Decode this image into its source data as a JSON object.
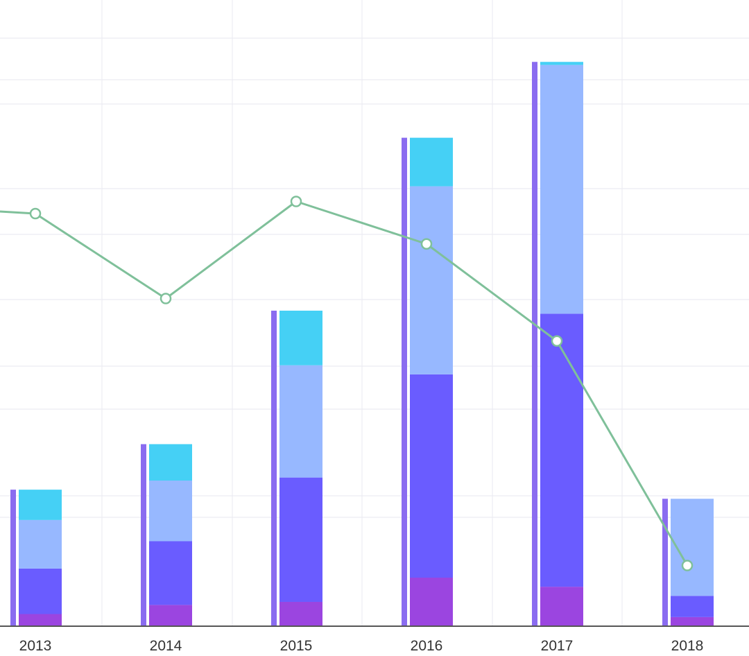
{
  "chart_data": {
    "type": "bar",
    "stacked": true,
    "categories": [
      "2013",
      "2014",
      "2015",
      "2016",
      "2017",
      "2018"
    ],
    "y_range": [
      0,
      100
    ],
    "grid": true,
    "series": [
      {
        "color": "#9b45e0",
        "values": [
          2,
          3.5,
          4,
          8,
          6.5,
          1.5
        ]
      },
      {
        "color": "#6a5cff",
        "values": [
          7.5,
          10.5,
          20.5,
          33.5,
          45,
          3.5
        ]
      },
      {
        "color": "#97b8ff",
        "values": [
          8,
          10,
          18.5,
          31,
          41,
          16
        ]
      },
      {
        "color": "#45d0f5",
        "values": [
          5,
          6,
          9,
          8,
          0.5,
          0
        ]
      }
    ],
    "total_marker_color": "#8a6cf0",
    "line_series": {
      "color": "#7fc09a",
      "values": [
        68,
        54,
        70,
        63,
        47,
        10
      ]
    }
  }
}
